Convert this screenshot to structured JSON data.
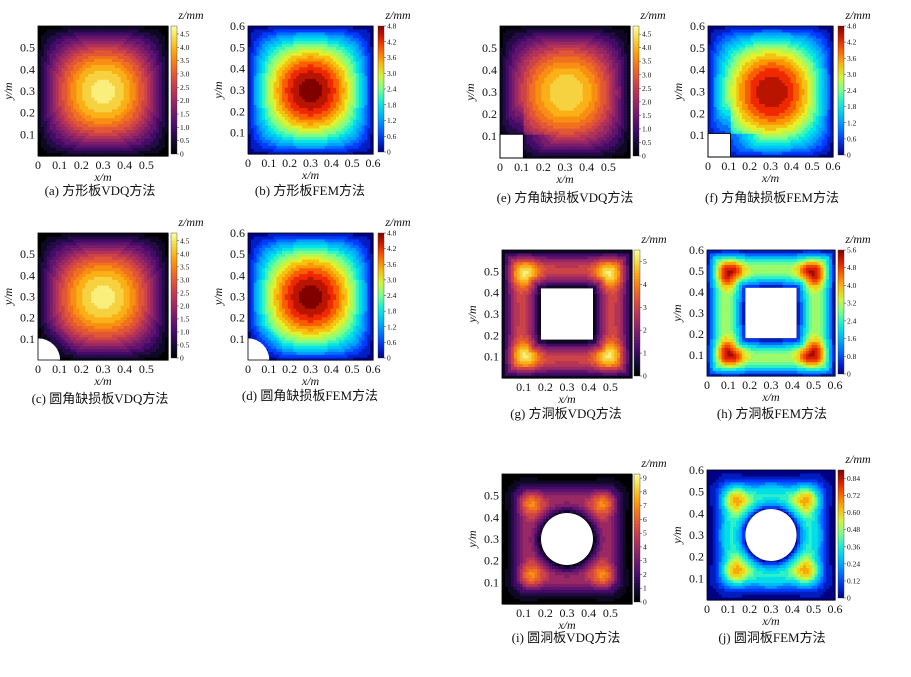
{
  "chart_data": [
    {
      "id": "a",
      "type": "heatmap",
      "method": "VDQ",
      "hole": "none",
      "caption": "(a) 方形板VDQ方法",
      "colorbar_title": "z/mm",
      "colorbar_ticks": [
        "0",
        "0.5",
        "1.0",
        "1.5",
        "2.0",
        "2.5",
        "3.0",
        "3.5",
        "4.0",
        "4.5"
      ],
      "cmax": 4.8,
      "peak": 4.6,
      "x_ticks": [
        "0",
        "0.1",
        "0.2",
        "0.3",
        "0.4",
        "0.5"
      ],
      "y_ticks": [
        "0.1",
        "0.2",
        "0.3",
        "0.4",
        "0.5"
      ],
      "xlabel": "x/m",
      "ylabel": "y/m"
    },
    {
      "id": "b",
      "type": "heatmap",
      "method": "FEM",
      "hole": "none",
      "caption": "(b) 方形板FEM方法",
      "colorbar_title": "z/mm",
      "colorbar_ticks": [
        "0",
        "0.6",
        "1.2",
        "1.8",
        "2.4",
        "3.0",
        "3.6",
        "4.2",
        "4.8"
      ],
      "cmax": 4.8,
      "peak": 4.8,
      "x_ticks": [
        "0",
        "0.1",
        "0.2",
        "0.3",
        "0.4",
        "0.5",
        "0.6"
      ],
      "y_ticks": [
        "0.1",
        "0.2",
        "0.3",
        "0.4",
        "0.5",
        "0.6"
      ],
      "xlabel": "x/m",
      "ylabel": "y/m"
    },
    {
      "id": "c",
      "type": "heatmap",
      "method": "VDQ",
      "hole": "round-corner",
      "caption": "(c) 圆角缺损板VDQ方法",
      "colorbar_title": "z/mm",
      "colorbar_ticks": [
        "0",
        "0.5",
        "1.0",
        "1.5",
        "2.0",
        "2.5",
        "3.0",
        "3.5",
        "4.0",
        "4.5"
      ],
      "cmax": 4.8,
      "peak": 4.6,
      "x_ticks": [
        "0",
        "0.1",
        "0.2",
        "0.3",
        "0.4",
        "0.5"
      ],
      "y_ticks": [
        "0.1",
        "0.2",
        "0.3",
        "0.4",
        "0.5"
      ],
      "xlabel": "x/m",
      "ylabel": "y/m"
    },
    {
      "id": "d",
      "type": "heatmap",
      "method": "FEM",
      "hole": "round-corner",
      "caption": "(d) 圆角缺损板FEM方法",
      "colorbar_title": "z/mm",
      "colorbar_ticks": [
        "0",
        "0.6",
        "1.2",
        "1.8",
        "2.4",
        "3.0",
        "3.6",
        "4.2",
        "4.8"
      ],
      "cmax": 4.8,
      "peak": 4.8,
      "x_ticks": [
        "0",
        "0.1",
        "0.2",
        "0.3",
        "0.4",
        "0.5",
        "0.6"
      ],
      "y_ticks": [
        "0.1",
        "0.2",
        "0.3",
        "0.4",
        "0.5",
        "0.6"
      ],
      "xlabel": "x/m",
      "ylabel": "y/m"
    },
    {
      "id": "e",
      "type": "heatmap",
      "method": "VDQ",
      "hole": "square-corner",
      "caption": "(e) 方角缺损板VDQ方法",
      "colorbar_title": "z/mm",
      "colorbar_ticks": [
        "0",
        "0.5",
        "1.0",
        "1.5",
        "2.0",
        "2.5",
        "3.0",
        "3.5",
        "4.0",
        "4.5"
      ],
      "cmax": 4.8,
      "peak": 4.6,
      "x_ticks": [
        "0",
        "0.1",
        "0.2",
        "0.3",
        "0.4",
        "0.5"
      ],
      "y_ticks": [
        "0.1",
        "0.2",
        "0.3",
        "0.4",
        "0.5"
      ],
      "xlabel": "x/m",
      "ylabel": "y/m"
    },
    {
      "id": "f",
      "type": "heatmap",
      "method": "FEM",
      "hole": "square-corner",
      "caption": "(f) 方角缺损板FEM方法",
      "colorbar_title": "z/mm",
      "colorbar_ticks": [
        "0",
        "0.6",
        "1.2",
        "1.8",
        "2.4",
        "3.0",
        "3.6",
        "4.2",
        "4.8"
      ],
      "cmax": 4.8,
      "peak": 4.8,
      "x_ticks": [
        "0",
        "0.1",
        "0.2",
        "0.3",
        "0.4",
        "0.5",
        "0.6"
      ],
      "y_ticks": [
        "0.1",
        "0.2",
        "0.3",
        "0.4",
        "0.5",
        "0.6"
      ],
      "xlabel": "x/m",
      "ylabel": "y/m"
    },
    {
      "id": "g",
      "type": "heatmap",
      "method": "VDQ",
      "hole": "square-center",
      "caption": "(g) 方洞板VDQ方法",
      "colorbar_title": "z/mm",
      "colorbar_ticks": [
        "0",
        "1",
        "2",
        "3",
        "4",
        "5"
      ],
      "cmax": 5.5,
      "peak": 5.3,
      "x_ticks": [
        "0.1",
        "0.2",
        "0.3",
        "0.4",
        "0.5"
      ],
      "y_ticks": [
        "0.1",
        "0.2",
        "0.3",
        "0.4",
        "0.5"
      ],
      "xlabel": "x/m",
      "ylabel": "y/m"
    },
    {
      "id": "h",
      "type": "heatmap",
      "method": "FEM",
      "hole": "square-center",
      "caption": "(h) 方洞板FEM方法",
      "colorbar_title": "z/mm",
      "colorbar_ticks": [
        "0",
        "0.8",
        "1.6",
        "2.4",
        "3.2",
        "4.0",
        "4.8",
        "5.6"
      ],
      "cmax": 5.6,
      "peak": 5.4,
      "x_ticks": [
        "0",
        "0.1",
        "0.2",
        "0.3",
        "0.4",
        "0.5",
        "0.6"
      ],
      "y_ticks": [
        "0.1",
        "0.2",
        "0.3",
        "0.4",
        "0.5",
        "0.6"
      ],
      "xlabel": "x/m",
      "ylabel": "y/m"
    },
    {
      "id": "i",
      "type": "heatmap",
      "method": "VDQ",
      "hole": "round-center",
      "caption": "(i) 圆洞板VDQ方法",
      "colorbar_title": "z/mm",
      "colorbar_ticks": [
        "0",
        "1",
        "2",
        "3",
        "4",
        "5",
        "6",
        "7",
        "8",
        "9"
      ],
      "cmax": 9.3,
      "peak": 9.0,
      "x_ticks": [
        "0.1",
        "0.2",
        "0.3",
        "0.4",
        "0.5"
      ],
      "y_ticks": [
        "0.1",
        "0.2",
        "0.3",
        "0.4",
        "0.5"
      ],
      "xlabel": "x/m",
      "ylabel": "y/m"
    },
    {
      "id": "j",
      "type": "heatmap",
      "method": "FEM",
      "hole": "round-center",
      "caption": "(j) 圆洞板FEM方法",
      "colorbar_title": "z/mm",
      "colorbar_ticks": [
        "0",
        "0.12",
        "0.24",
        "0.36",
        "0.48",
        "0.60",
        "0.72",
        "0.84"
      ],
      "cmax": 0.9,
      "peak": 0.87,
      "x_ticks": [
        "0",
        "0.1",
        "0.2",
        "0.3",
        "0.4",
        "0.5",
        "0.6"
      ],
      "y_ticks": [
        "0.1",
        "0.2",
        "0.3",
        "0.4",
        "0.5",
        "0.6"
      ],
      "xlabel": "x/m",
      "ylabel": "y/m"
    }
  ]
}
